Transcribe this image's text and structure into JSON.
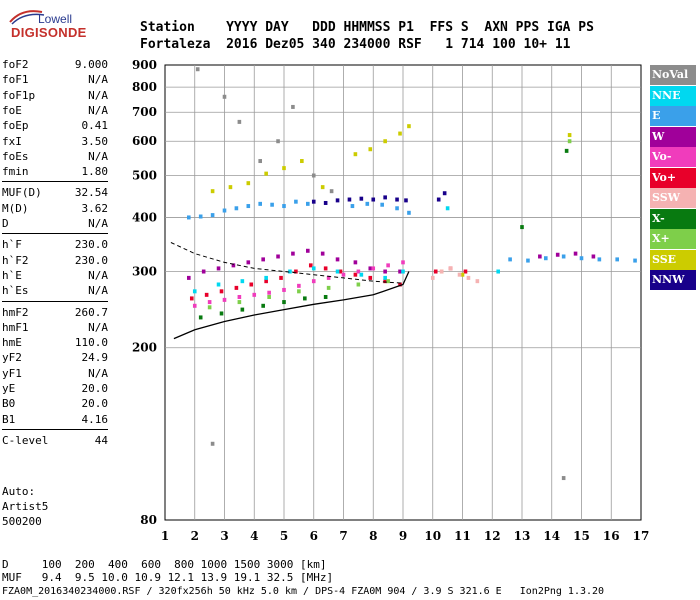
{
  "logo": {
    "top": "Lowell",
    "bottom": "DIGISONDE"
  },
  "header": {
    "line1": "Station    YYYY DAY   DDD HHMMSS P1  FFS S  AXN PPS IGA PS",
    "line2": "Fortaleza  2016 Dez05 340 234000 RSF   1 714 100 10+ 11"
  },
  "params": [
    {
      "k": "foF2",
      "v": "9.000"
    },
    {
      "k": "foF1",
      "v": "N/A"
    },
    {
      "k": "foF1p",
      "v": "N/A"
    },
    {
      "k": "foE",
      "v": "N/A"
    },
    {
      "k": "foEp",
      "v": "0.41"
    },
    {
      "k": "fxI",
      "v": "3.50"
    },
    {
      "k": "foEs",
      "v": "N/A"
    },
    {
      "k": "fmin",
      "v": "1.80"
    },
    {
      "k": "MUF(D)",
      "v": "32.54"
    },
    {
      "k": "M(D)",
      "v": "3.62"
    },
    {
      "k": "D",
      "v": "N/A"
    },
    {
      "k": "h`F",
      "v": "230.0"
    },
    {
      "k": "h`F2",
      "v": "230.0"
    },
    {
      "k": "h`E",
      "v": "N/A"
    },
    {
      "k": "h`Es",
      "v": "N/A"
    },
    {
      "k": "hmF2",
      "v": "260.7"
    },
    {
      "k": "hmF1",
      "v": "N/A"
    },
    {
      "k": "hmE",
      "v": "110.0"
    },
    {
      "k": "yF2",
      "v": "24.9"
    },
    {
      "k": "yF1",
      "v": "N/A"
    },
    {
      "k": "yE",
      "v": "20.0"
    },
    {
      "k": "B0",
      "v": "20.0"
    },
    {
      "k": "B1",
      "v": "4.16"
    },
    {
      "k": "C-level",
      "v": "44"
    }
  ],
  "extra": {
    "l1": "Auto:",
    "l2": "Artist5",
    "l3": "500200"
  },
  "legend": [
    {
      "label": "NoVal",
      "color": "#8c8c8c"
    },
    {
      "label": "NNE",
      "color": "#00d8f0"
    },
    {
      "label": "E",
      "color": "#3aa0ea"
    },
    {
      "label": "W",
      "color": "#a0009a"
    },
    {
      "label": "Vo-",
      "color": "#f03cbc"
    },
    {
      "label": "Vo+",
      "color": "#e8002a"
    },
    {
      "label": "SSW",
      "color": "#f5b2b2"
    },
    {
      "label": "X-",
      "color": "#087a10"
    },
    {
      "label": "X+",
      "color": "#7ecf4a"
    },
    {
      "label": "SSE",
      "color": "#cccc00"
    },
    {
      "label": "NNW",
      "color": "#18008a"
    }
  ],
  "footer": {
    "line1": "D     100  200  400  600  800 1000 1500 3000 [km]",
    "line2": "MUF   9.4  9.5 10.0 10.9 12.1 13.9 19.1 32.5 [MHz]",
    "line3": "FZA0M_2016340234000.RSF / 320fx256h 50 kHz 5.0 km / DPS-4 FZA0M 904 / 3.9 S 321.6 E   Ion2Png 1.3.20"
  },
  "chart_data": {
    "type": "scatter",
    "title": "",
    "xlabel": "",
    "ylabel": "",
    "xlim": [
      1,
      17
    ],
    "ylim": [
      80,
      900
    ],
    "y_scale": "log",
    "xticks": [
      1,
      2,
      3,
      4,
      5,
      6,
      7,
      8,
      9,
      10,
      11,
      12,
      13,
      14,
      15,
      16,
      17
    ],
    "yticks": [
      80,
      200,
      300,
      400,
      500,
      600,
      700,
      800,
      900
    ],
    "grid": true,
    "legend_position": "right",
    "series": [
      {
        "name": "E",
        "color": "#3aa0ea",
        "points": [
          [
            1.8,
            400
          ],
          [
            2.2,
            402
          ],
          [
            2.6,
            405
          ],
          [
            3.0,
            415
          ],
          [
            3.4,
            420
          ],
          [
            3.8,
            425
          ],
          [
            4.2,
            430
          ],
          [
            4.6,
            428
          ],
          [
            5.0,
            425
          ],
          [
            5.4,
            435
          ],
          [
            5.8,
            430
          ],
          [
            7.3,
            425
          ],
          [
            7.8,
            430
          ],
          [
            8.3,
            428
          ],
          [
            8.8,
            420
          ],
          [
            9.2,
            410
          ],
          [
            12.6,
            320
          ],
          [
            13.2,
            318
          ],
          [
            13.8,
            322
          ],
          [
            14.4,
            325
          ],
          [
            15.0,
            322
          ],
          [
            15.6,
            320
          ],
          [
            16.2,
            320
          ],
          [
            16.8,
            318
          ]
        ]
      },
      {
        "name": "NNW",
        "color": "#18008a",
        "points": [
          [
            6.0,
            435
          ],
          [
            6.4,
            432
          ],
          [
            6.8,
            438
          ],
          [
            7.2,
            440
          ],
          [
            7.6,
            442
          ],
          [
            8.0,
            440
          ],
          [
            8.4,
            445
          ],
          [
            8.8,
            440
          ],
          [
            9.1,
            438
          ],
          [
            10.2,
            440
          ],
          [
            10.4,
            455
          ]
        ]
      },
      {
        "name": "W",
        "color": "#a0009a",
        "points": [
          [
            1.8,
            290
          ],
          [
            2.3,
            300
          ],
          [
            2.8,
            305
          ],
          [
            3.3,
            310
          ],
          [
            3.8,
            315
          ],
          [
            4.3,
            320
          ],
          [
            4.8,
            325
          ],
          [
            5.3,
            330
          ],
          [
            5.8,
            335
          ],
          [
            6.3,
            330
          ],
          [
            6.8,
            320
          ],
          [
            7.4,
            315
          ],
          [
            7.9,
            305
          ],
          [
            8.4,
            300
          ],
          [
            8.9,
            300
          ],
          [
            13.6,
            325
          ],
          [
            14.2,
            328
          ],
          [
            14.8,
            330
          ],
          [
            15.4,
            325
          ]
        ]
      },
      {
        "name": "Vo+",
        "color": "#e8002a",
        "points": [
          [
            1.9,
            260
          ],
          [
            2.4,
            265
          ],
          [
            2.9,
            270
          ],
          [
            3.4,
            275
          ],
          [
            3.9,
            280
          ],
          [
            4.4,
            285
          ],
          [
            4.9,
            290
          ],
          [
            5.4,
            300
          ],
          [
            5.9,
            310
          ],
          [
            6.4,
            305
          ],
          [
            6.9,
            300
          ],
          [
            7.4,
            295
          ],
          [
            7.9,
            290
          ],
          [
            8.4,
            285
          ],
          [
            8.9,
            280
          ],
          [
            10.1,
            300
          ],
          [
            10.6,
            305
          ],
          [
            11.1,
            300
          ]
        ]
      },
      {
        "name": "Vo-",
        "color": "#f03cbc",
        "points": [
          [
            2.0,
            250
          ],
          [
            2.5,
            255
          ],
          [
            3.0,
            258
          ],
          [
            3.5,
            262
          ],
          [
            4.0,
            265
          ],
          [
            4.5,
            268
          ],
          [
            5.0,
            272
          ],
          [
            5.5,
            278
          ],
          [
            6.0,
            285
          ],
          [
            6.5,
            290
          ],
          [
            7.0,
            295
          ],
          [
            7.5,
            300
          ],
          [
            8.0,
            305
          ],
          [
            8.5,
            310
          ],
          [
            9.0,
            315
          ]
        ]
      },
      {
        "name": "SSE",
        "color": "#cccc00",
        "points": [
          [
            2.6,
            460
          ],
          [
            3.2,
            470
          ],
          [
            3.8,
            480
          ],
          [
            4.4,
            505
          ],
          [
            5.0,
            520
          ],
          [
            5.6,
            540
          ],
          [
            6.3,
            470
          ],
          [
            7.4,
            560
          ],
          [
            7.9,
            575
          ],
          [
            8.4,
            600
          ],
          [
            8.9,
            625
          ],
          [
            9.2,
            650
          ],
          [
            14.6,
            620
          ],
          [
            10.3,
            300
          ],
          [
            11.0,
            295
          ]
        ]
      },
      {
        "name": "NNE",
        "color": "#00d8f0",
        "points": [
          [
            2.0,
            270
          ],
          [
            2.8,
            280
          ],
          [
            3.6,
            285
          ],
          [
            4.4,
            290
          ],
          [
            5.2,
            300
          ],
          [
            6.0,
            305
          ],
          [
            6.8,
            300
          ],
          [
            7.6,
            295
          ],
          [
            8.4,
            290
          ],
          [
            9.0,
            300
          ],
          [
            10.5,
            420
          ],
          [
            12.2,
            300
          ]
        ]
      },
      {
        "name": "SSW",
        "color": "#f5b2b2",
        "points": [
          [
            10.0,
            290
          ],
          [
            10.3,
            300
          ],
          [
            10.6,
            305
          ],
          [
            10.9,
            295
          ],
          [
            11.2,
            290
          ],
          [
            11.5,
            285
          ]
        ]
      },
      {
        "name": "X-",
        "color": "#087a10",
        "points": [
          [
            2.2,
            235
          ],
          [
            2.9,
            240
          ],
          [
            3.6,
            245
          ],
          [
            4.3,
            250
          ],
          [
            5.0,
            255
          ],
          [
            5.7,
            260
          ],
          [
            6.4,
            262
          ],
          [
            14.5,
            570
          ],
          [
            13.0,
            380
          ]
        ]
      },
      {
        "name": "X+",
        "color": "#7ecf4a",
        "points": [
          [
            2.5,
            248
          ],
          [
            3.5,
            255
          ],
          [
            4.5,
            262
          ],
          [
            5.5,
            270
          ],
          [
            6.5,
            275
          ],
          [
            7.5,
            280
          ],
          [
            8.5,
            285
          ],
          [
            14.6,
            600
          ]
        ]
      },
      {
        "name": "NoVal",
        "color": "#8c8c8c",
        "points": [
          [
            2.1,
            880
          ],
          [
            3.0,
            760
          ],
          [
            3.5,
            665
          ],
          [
            4.2,
            540
          ],
          [
            4.8,
            600
          ],
          [
            5.3,
            720
          ],
          [
            6.0,
            500
          ],
          [
            6.6,
            460
          ],
          [
            2.6,
            120
          ],
          [
            14.4,
            100
          ]
        ]
      }
    ],
    "profile_line": {
      "color": "#000000",
      "points": [
        [
          1.3,
          210
        ],
        [
          2,
          220
        ],
        [
          3,
          230
        ],
        [
          4,
          238
        ],
        [
          5,
          245
        ],
        [
          6,
          252
        ],
        [
          7,
          258
        ],
        [
          8,
          265
        ],
        [
          9,
          280
        ],
        [
          9.2,
          300
        ]
      ]
    },
    "dashed_line": {
      "color": "#000000",
      "points": [
        [
          1.2,
          350
        ],
        [
          2,
          330
        ],
        [
          3,
          315
        ],
        [
          4,
          305
        ],
        [
          5,
          300
        ],
        [
          6,
          295
        ],
        [
          7,
          290
        ],
        [
          8,
          285
        ],
        [
          9,
          282
        ]
      ]
    }
  }
}
